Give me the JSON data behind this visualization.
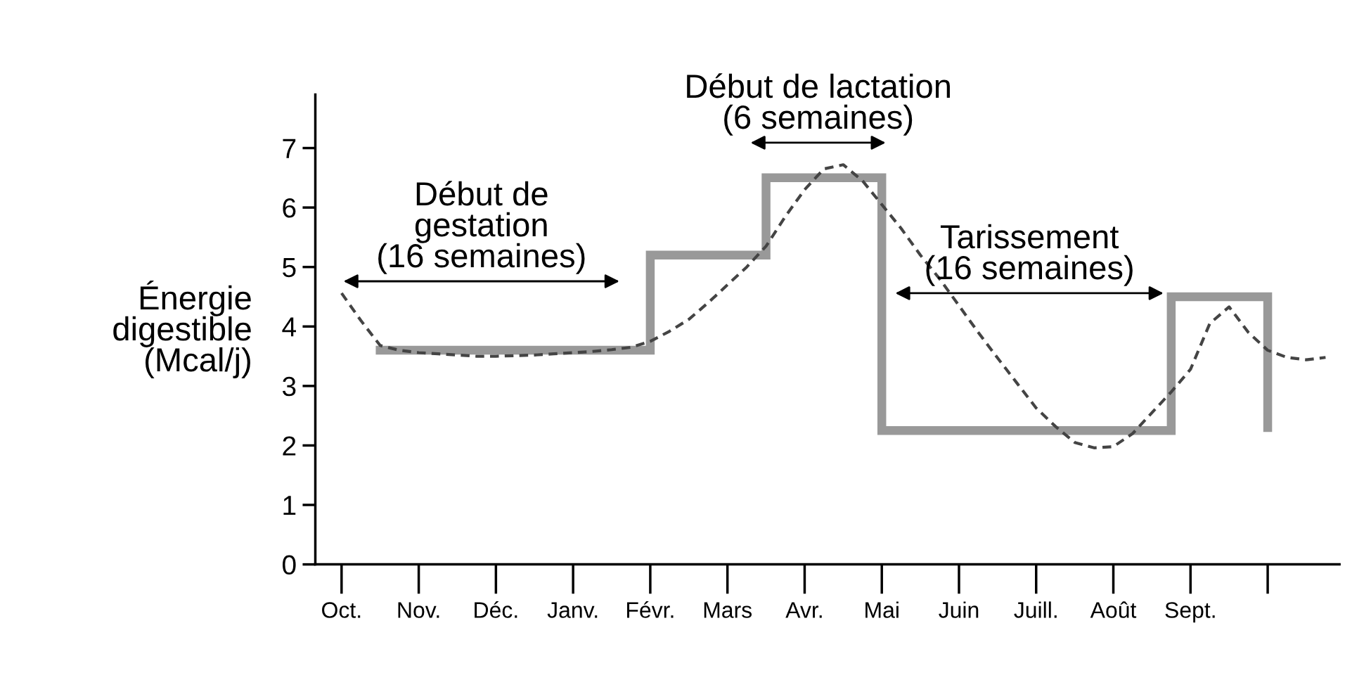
{
  "chart_data": {
    "type": "line",
    "ylabel": "Énergie\ndigestible\n(Mcal/j)",
    "categories": [
      "Oct.",
      null,
      null,
      null,
      "Nov.",
      null,
      null,
      null,
      "Déc.",
      null,
      null,
      null,
      "Janv.",
      null,
      null,
      null,
      "Févr.",
      null,
      null,
      null,
      "Mars",
      null,
      null,
      null,
      "Avr.",
      null,
      null,
      null,
      "Mai",
      null,
      null,
      null,
      "Juin",
      null,
      null,
      null,
      "Juill.",
      null,
      null,
      null,
      "Août",
      null,
      null,
      null,
      "Sept.",
      null,
      null,
      null,
      null,
      null,
      null,
      null
    ],
    "ylim": [
      0,
      7.9
    ],
    "yticks": [
      0,
      1,
      2,
      3,
      4,
      5,
      6,
      7
    ],
    "grid": false,
    "series": [
      {
        "type": "step",
        "color": "#999999",
        "line_style": "solid",
        "values": [
          null,
          null,
          3.6,
          3.6,
          3.6,
          3.6,
          3.6,
          3.6,
          3.6,
          3.6,
          3.6,
          3.6,
          3.6,
          3.6,
          3.6,
          3.6,
          5.2,
          5.2,
          5.2,
          5.2,
          5.2,
          5.2,
          6.5,
          6.5,
          6.5,
          6.5,
          6.5,
          6.5,
          2.25,
          2.25,
          2.25,
          2.25,
          2.25,
          2.25,
          2.25,
          2.25,
          2.25,
          2.25,
          2.25,
          2.25,
          2.25,
          2.25,
          2.25,
          4.5,
          4.5,
          4.5,
          4.5,
          4.5,
          2.3,
          null,
          null,
          null
        ]
      },
      {
        "color": "#444444",
        "line_style": "dashed",
        "values": [
          4.56,
          4.1,
          3.68,
          3.6,
          3.56,
          3.54,
          3.52,
          3.5,
          3.5,
          3.51,
          3.52,
          3.54,
          3.56,
          3.58,
          3.61,
          3.65,
          3.75,
          3.92,
          4.12,
          4.4,
          4.7,
          5.0,
          5.35,
          5.85,
          6.3,
          6.65,
          6.72,
          6.45,
          6.05,
          5.65,
          5.2,
          4.8,
          4.35,
          3.9,
          3.47,
          3.05,
          2.63,
          2.32,
          2.05,
          1.96,
          1.98,
          2.2,
          2.55,
          2.9,
          3.28,
          4.05,
          4.33,
          3.9,
          3.6,
          3.48,
          3.44,
          3.48
        ]
      }
    ],
    "annotations": [
      "Début de\ngestation\n(16 semaines)",
      "Début de lactation\n(6 semaines)",
      "Tarissement\n(16 semaines)"
    ]
  }
}
